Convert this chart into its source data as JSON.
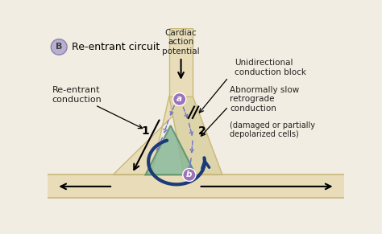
{
  "bg_color": "#f2ede2",
  "nerve_bg": "#e8ddb8",
  "nerve_border": "#c8b87a",
  "right_branch_bg": "#ddd4aa",
  "triangle_fill": "#8ab898",
  "triangle_edge": "#5a9068",
  "arrow_blue": "#1a3a7a",
  "arrow_dashed": "#7070cc",
  "circle_color": "#9b72bb",
  "fiber_bg": "#e8ddb8",
  "fiber_border": "#c8b87a",
  "label_B": "B",
  "label_reentrant_circuit": "Re-entrant circuit",
  "label_cardiac": "Cardiac\naction\npotential",
  "label_unidirectional": "Unidirectional\nconduction block",
  "label_reentrant_conduction": "Re-entrant\nconduction",
  "label_abnormally": "Abnormally slow\nretrograde\nconduction",
  "label_damaged": "(damaged or partially\ndepolarized cells)",
  "label_1": "1",
  "label_2": "2",
  "label_a": "a",
  "label_b": "b"
}
